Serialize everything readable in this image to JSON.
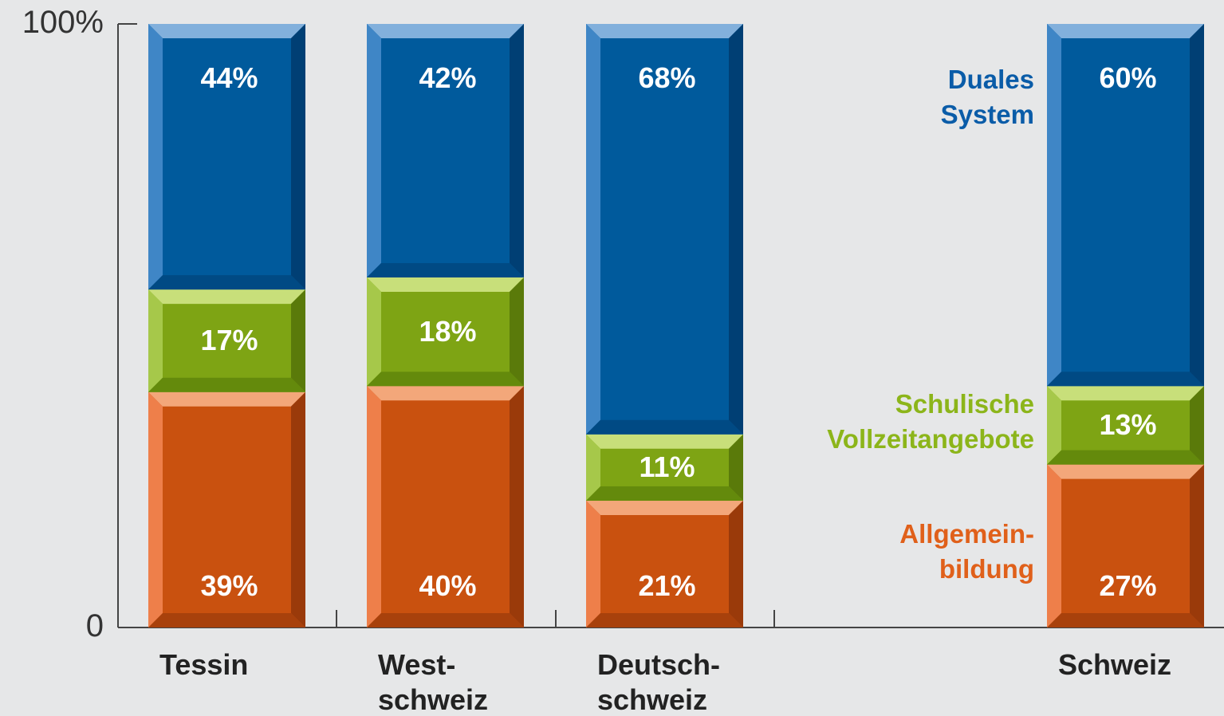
{
  "chart_data": {
    "type": "stacked-bar",
    "categories": [
      "Tessin",
      "West-\nschweiz",
      "Deutsch-\nschweiz",
      "Schweiz"
    ],
    "series": [
      {
        "name": "Allgemein-\nbildung",
        "color": "#c9510f",
        "values": [
          39,
          40,
          21,
          27
        ],
        "value_labels": [
          "39%",
          "40%",
          "21%",
          "27%"
        ]
      },
      {
        "name": "Schulische\nVollzeitangebote",
        "color": "#7ea414",
        "values": [
          17,
          18,
          11,
          13
        ],
        "value_labels": [
          "17%",
          "18%",
          "11%",
          "13%"
        ]
      },
      {
        "name": "Duales\nSystem",
        "color": "#005a9c",
        "values": [
          44,
          42,
          68,
          60
        ],
        "value_labels": [
          "44%",
          "42%",
          "68%",
          "60%"
        ]
      }
    ],
    "ylim": [
      0,
      100
    ],
    "yticks": [
      0,
      {
        "value": 100,
        "label": "100%"
      }
    ]
  }
}
